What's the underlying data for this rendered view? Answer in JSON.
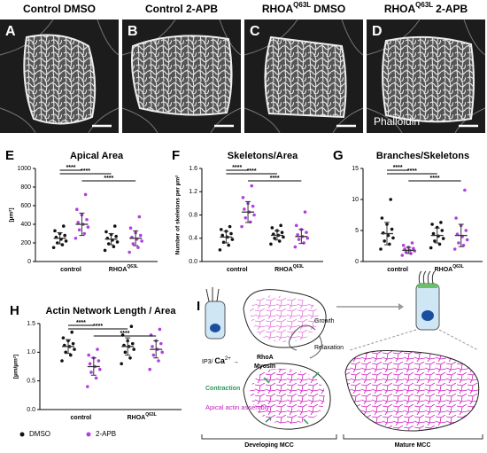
{
  "images": [
    {
      "letter": "A",
      "title": "Control DMSO"
    },
    {
      "letter": "B",
      "title": "Control 2-APB"
    },
    {
      "letter": "C",
      "title": "RHOA",
      "title_sup": "Q63L",
      "title_rest": "DMSO"
    },
    {
      "letter": "D",
      "title": "RHOA",
      "title_sup": "Q63L",
      "title_rest": "2-APB",
      "label": "Phalloidin"
    }
  ],
  "charts": [
    {
      "type": "dot",
      "letter": "E",
      "title": "Apical Area",
      "ylabel": "[µm²]",
      "ylim": [
        0,
        1000
      ],
      "yticks": [
        0,
        200,
        400,
        600,
        800,
        1000
      ],
      "categories": [
        "control",
        "RHOA"
      ],
      "category_sup": "Q63L",
      "significance": [
        "****",
        "****",
        "****"
      ],
      "series": [
        {
          "color": "#111111",
          "values": [
            [
              150,
              180,
              200,
              220,
              240,
              260,
              280,
              300,
              330,
              380
            ],
            [
              120,
              160,
              190,
              210,
              230,
              250,
              270,
              290,
              320,
              380
            ]
          ],
          "means": [
            250,
            240
          ],
          "sds": [
            60,
            60
          ]
        },
        {
          "color": "#b040e0",
          "values": [
            [
              250,
              300,
              340,
              370,
              400,
              420,
              450,
              500,
              560,
              720
            ],
            [
              100,
              150,
              190,
              220,
              240,
              260,
              280,
              310,
              360,
              480
            ]
          ],
          "means": [
            400,
            250
          ],
          "sds": [
            120,
            80
          ]
        }
      ]
    },
    {
      "type": "dot",
      "letter": "F",
      "title": "Skeletons/Area",
      "ylabel": "Number of skeletons per µm²",
      "ylim": [
        0,
        1.6
      ],
      "yticks": [
        {
          "value": 0,
          "label": "0.0"
        },
        0.4,
        0.8,
        1.2,
        1.6
      ],
      "categories": [
        "control",
        "RHOA"
      ],
      "category_sup": "Q63L",
      "significance": [
        "****",
        "****",
        "****"
      ],
      "series": [
        {
          "color": "#111111",
          "values": [
            [
              0.2,
              0.28,
              0.33,
              0.38,
              0.42,
              0.45,
              0.48,
              0.52,
              0.55,
              0.6
            ],
            [
              0.3,
              0.35,
              0.4,
              0.42,
              0.45,
              0.47,
              0.5,
              0.53,
              0.58,
              0.62
            ]
          ],
          "means": [
            0.42,
            0.45
          ],
          "sds": [
            0.1,
            0.08
          ]
        },
        {
          "color": "#b040e0",
          "values": [
            [
              0.6,
              0.68,
              0.75,
              0.8,
              0.85,
              0.9,
              0.95,
              1.0,
              1.1,
              1.3
            ],
            [
              0.25,
              0.32,
              0.38,
              0.4,
              0.43,
              0.46,
              0.5,
              0.55,
              0.62,
              0.85
            ]
          ],
          "means": [
            0.85,
            0.43
          ],
          "sds": [
            0.18,
            0.12
          ]
        }
      ]
    },
    {
      "type": "dot",
      "letter": "G",
      "title": "Branches/Skeletons",
      "ylim": [
        0,
        15
      ],
      "yticks": [
        0,
        5,
        10,
        15
      ],
      "categories": [
        "control",
        "RHOA"
      ],
      "category_sup": "Q63L",
      "significance": [
        "****",
        "****",
        "****"
      ],
      "series": [
        {
          "color": "#111111",
          "values": [
            [
              2,
              2.8,
              3.3,
              3.8,
              4.2,
              4.6,
              5.2,
              6,
              7,
              10
            ],
            [
              2.2,
              2.8,
              3.3,
              3.7,
              4.1,
              4.5,
              5,
              5.5,
              6,
              6.3
            ]
          ],
          "means": [
            4.5,
            4.2
          ],
          "sds": [
            1.8,
            1.2
          ]
        },
        {
          "color": "#b040e0",
          "values": [
            [
              1,
              1.3,
              1.5,
              1.7,
              1.8,
              2,
              2.1,
              2.3,
              2.6,
              3
            ],
            [
              2,
              2.6,
              3,
              3.5,
              4,
              4.4,
              5,
              5.8,
              7,
              11.5
            ]
          ],
          "means": [
            1.8,
            4.2
          ],
          "sds": [
            0.5,
            1.8
          ]
        }
      ]
    },
    {
      "type": "dot",
      "letter": "H",
      "title": "Actin Network Length / Area",
      "ylabel": "[µm/µm²]",
      "ylim": [
        0,
        1.5
      ],
      "yticks": [
        {
          "value": 0,
          "label": "0.0"
        },
        0.5,
        {
          "value": 1,
          "label": "1.0"
        },
        1.5
      ],
      "categories": [
        "control",
        "RHOA"
      ],
      "category_sup": "Q63L",
      "significance": [
        "****",
        "****",
        "****"
      ],
      "series": [
        {
          "name": "DMSO",
          "color": "#111111",
          "values": [
            [
              0.85,
              0.95,
              1.0,
              1.05,
              1.1,
              1.12,
              1.15,
              1.2,
              1.25,
              1.35
            ],
            [
              0.8,
              0.9,
              1.0,
              1.05,
              1.1,
              1.12,
              1.15,
              1.2,
              1.3,
              1.45
            ]
          ],
          "means": [
            1.1,
            1.1
          ],
          "sds": [
            0.12,
            0.15
          ]
        },
        {
          "name": "2-APB",
          "color": "#b040e0",
          "values": [
            [
              0.4,
              0.55,
              0.65,
              0.7,
              0.75,
              0.8,
              0.85,
              0.9,
              0.95,
              1.05
            ],
            [
              0.7,
              0.85,
              0.95,
              1.0,
              1.05,
              1.1,
              1.15,
              1.2,
              1.3,
              1.4
            ]
          ],
          "means": [
            0.75,
            1.05
          ],
          "sds": [
            0.15,
            0.15
          ]
        }
      ]
    }
  ],
  "diagram": {
    "letter": "I",
    "ip3": "IP3/",
    "ca": "Ca",
    "ca_sup": "2+",
    "rhoa": "RhoA",
    "myosin": "Myosin",
    "growth": "Growth",
    "relaxation": "Relaxation",
    "contraction": "Contraction",
    "assembly": "Apical actin assembly",
    "developing": "Developing MCC",
    "mature": "Mature MCC"
  }
}
